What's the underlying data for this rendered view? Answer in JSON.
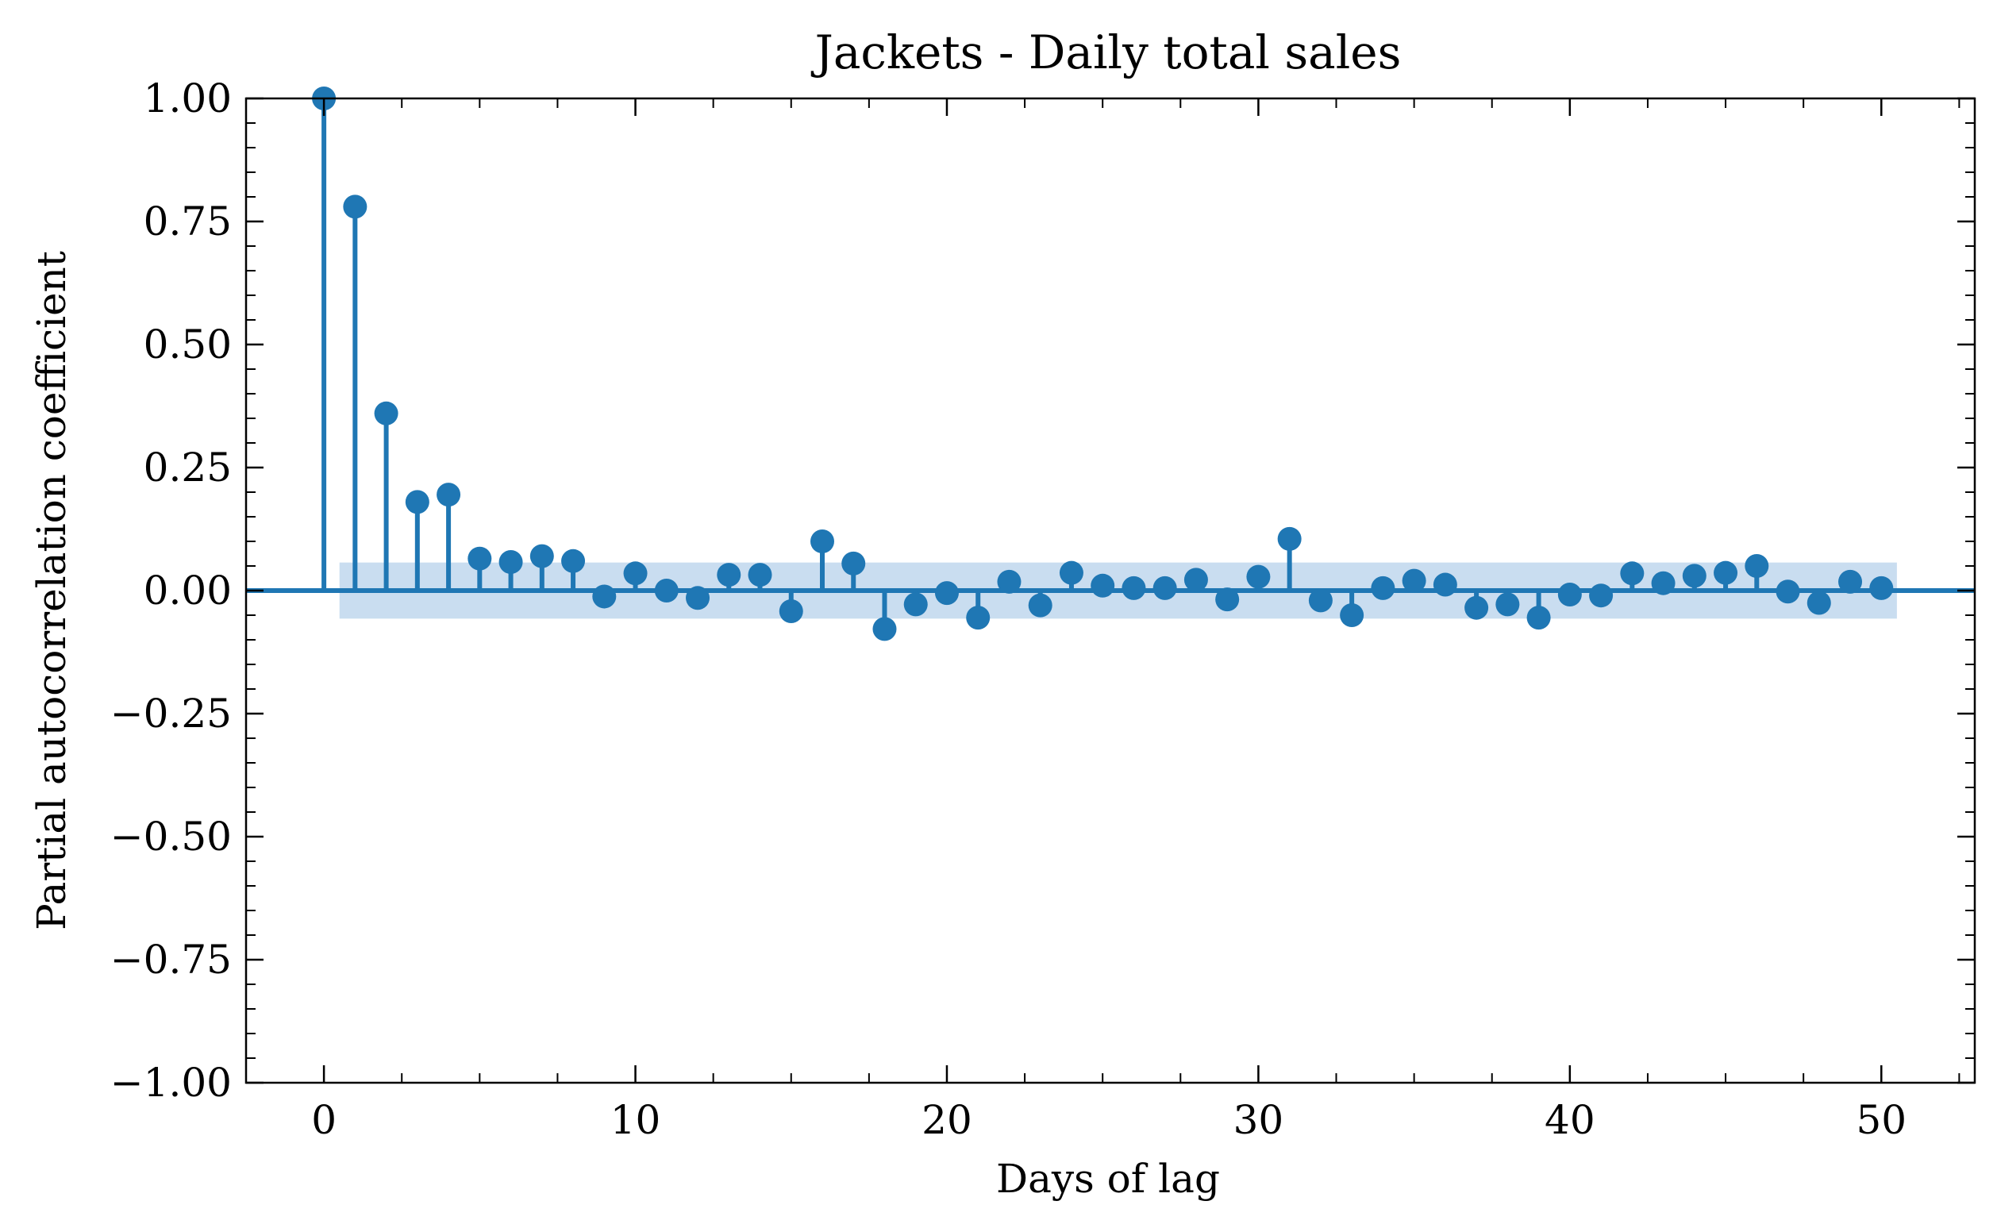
{
  "chart_data": {
    "type": "stem",
    "title": "Jackets - Daily total sales",
    "xlabel": "Days of lag",
    "ylabel": "Partial autocorrelation coefficient",
    "xlim": [
      -2.5,
      53
    ],
    "ylim": [
      -1.0,
      1.0
    ],
    "xticks": [
      0,
      10,
      20,
      30,
      40,
      50
    ],
    "xtick_labels": [
      "0",
      "10",
      "20",
      "30",
      "40",
      "50"
    ],
    "yticks": [
      1.0,
      0.75,
      0.5,
      0.25,
      0.0,
      -0.25,
      -0.5,
      -0.75,
      -1.0
    ],
    "ytick_labels": [
      "1.00",
      "0.75",
      "0.50",
      "0.25",
      "0.00",
      "−0.25",
      "−0.50",
      "−0.75",
      "−1.00"
    ],
    "confidence_band": {
      "x_range": [
        0.5,
        50.5
      ],
      "lower": -0.057,
      "upper": 0.057
    },
    "grid": false,
    "series": [
      {
        "x": [
          0,
          1,
          2,
          3,
          4,
          5,
          6,
          7,
          8,
          9,
          10,
          11,
          12,
          13,
          14,
          15,
          16,
          17,
          18,
          19,
          20,
          21,
          22,
          23,
          24,
          25,
          26,
          27,
          28,
          29,
          30,
          31,
          32,
          33,
          34,
          35,
          36,
          37,
          38,
          39,
          40,
          41,
          42,
          43,
          44,
          45,
          46,
          47,
          48,
          49,
          50
        ],
        "values": [
          1.0,
          0.78,
          0.36,
          0.18,
          0.195,
          0.065,
          0.058,
          0.07,
          0.06,
          -0.012,
          0.035,
          0.0,
          -0.015,
          0.032,
          0.032,
          -0.042,
          0.1,
          0.055,
          -0.078,
          -0.028,
          -0.005,
          -0.055,
          0.018,
          -0.03,
          0.036,
          0.01,
          0.005,
          0.005,
          0.022,
          -0.018,
          0.028,
          0.105,
          -0.02,
          -0.05,
          0.005,
          0.02,
          0.012,
          -0.035,
          -0.028,
          -0.055,
          -0.008,
          -0.01,
          0.035,
          0.015,
          0.03,
          0.036,
          0.05,
          -0.002,
          -0.025,
          0.018,
          0.005
        ]
      }
    ],
    "colors": {
      "series": "#1f77b4",
      "band": "#c6dbef",
      "axis": "#000000"
    }
  }
}
